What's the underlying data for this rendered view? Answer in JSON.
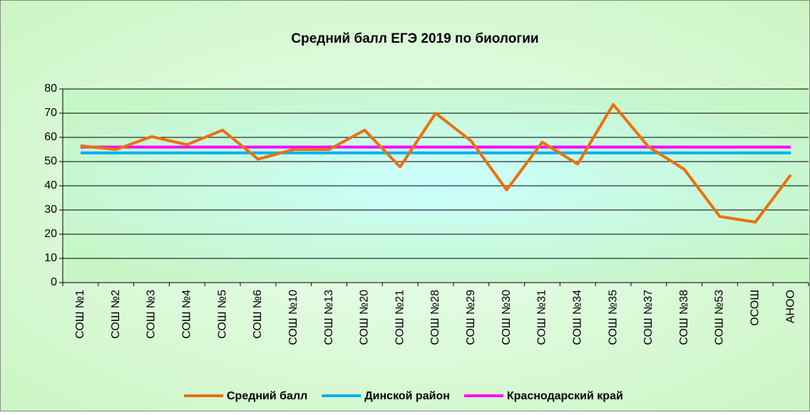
{
  "chart_data": {
    "type": "line",
    "title": "Средний балл ЕГЭ 2019 по биологии",
    "categories": [
      "СОШ №1",
      "СОШ №2",
      "СОШ №3",
      "СОШ №4",
      "СОШ №5",
      "СОШ №6",
      "СОШ №10",
      "СОШ №13",
      "СОШ №20",
      "СОШ №21",
      "СОШ №28",
      "СОШ №29",
      "СОШ №30",
      "СОШ №31",
      "СОШ №34",
      "СОШ №35",
      "СОШ №37",
      "СОШ №38",
      "СОШ №53",
      "ОСОШ",
      "АНОО"
    ],
    "series": [
      {
        "name": "Средний балл",
        "color": "#e8720c",
        "values": [
          56.5,
          55,
          60.3,
          57,
          63,
          51,
          55,
          55,
          63,
          47.8,
          70,
          58.5,
          38.3,
          58,
          49,
          73.6,
          56,
          46.8,
          27.3,
          25,
          44.5
        ]
      },
      {
        "name": "Динской район",
        "color": "#00b0f0",
        "values": [
          53.6,
          53.6,
          53.6,
          53.6,
          53.6,
          53.6,
          53.6,
          53.6,
          53.6,
          53.6,
          53.6,
          53.6,
          53.6,
          53.6,
          53.6,
          53.6,
          53.6,
          53.6,
          53.6,
          53.6,
          53.6
        ]
      },
      {
        "name": "Краснодарский край",
        "color": "#ff00ff",
        "values": [
          56,
          56,
          56,
          56,
          56,
          56,
          56,
          56,
          56,
          56,
          56,
          56,
          56,
          56,
          56,
          56,
          56,
          56,
          56,
          56,
          56
        ]
      }
    ],
    "ylim": [
      0,
      80
    ],
    "yticks": [
      0,
      10,
      20,
      30,
      40,
      50,
      60,
      70,
      80
    ],
    "grid": true,
    "legend": "bottom"
  }
}
